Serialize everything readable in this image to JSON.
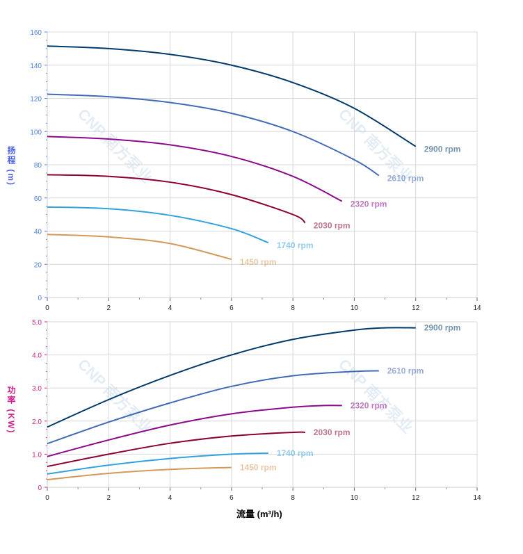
{
  "watermark": "CNP 南方泵业",
  "chart_data": [
    {
      "type": "line",
      "ylabel": "扬程 (m)",
      "xlim": [
        0,
        14
      ],
      "ylim": [
        0,
        160
      ],
      "grid": true,
      "xticks": [
        0,
        2,
        4,
        6,
        8,
        10,
        12,
        14
      ],
      "yticks": [
        0,
        20,
        40,
        60,
        80,
        100,
        120,
        140,
        160
      ],
      "axis_color": "#4a7fe0",
      "series": [
        {
          "name": "2900 rpm",
          "color": "#003a6b",
          "x": [
            0,
            2,
            4,
            6,
            8,
            10,
            12
          ],
          "y": [
            151.5,
            150,
            146.5,
            140,
            129.5,
            114,
            91
          ]
        },
        {
          "name": "2610 rpm",
          "color": "#4169b8",
          "x": [
            0,
            2,
            4,
            6,
            8,
            10,
            10.8
          ],
          "y": [
            122.5,
            121,
            117.5,
            111,
            100,
            83,
            73.5
          ]
        },
        {
          "name": "2320 rpm",
          "color": "#8b0a8b",
          "x": [
            0,
            2,
            4,
            6,
            8,
            9.6
          ],
          "y": [
            97,
            95.5,
            92,
            85,
            73,
            58
          ]
        },
        {
          "name": "2030 rpm",
          "color": "#8b0033",
          "x": [
            0,
            2,
            4,
            6,
            8,
            8.4
          ],
          "y": [
            74,
            73,
            69.5,
            62,
            50,
            45
          ]
        },
        {
          "name": "1740 rpm",
          "color": "#33a1de",
          "x": [
            0,
            2,
            4,
            6,
            7.2
          ],
          "y": [
            54.5,
            53.5,
            49.5,
            41.5,
            33
          ]
        },
        {
          "name": "1450 rpm",
          "color": "#d4995a",
          "x": [
            0,
            2,
            4,
            6
          ],
          "y": [
            38,
            36.5,
            32.5,
            23
          ]
        }
      ]
    },
    {
      "type": "line",
      "xlabel": "流量 (m³/h)",
      "ylabel": "功率 (KW)",
      "xlim": [
        0,
        14
      ],
      "ylim": [
        0,
        5
      ],
      "grid": true,
      "xticks": [
        0,
        2,
        4,
        6,
        8,
        10,
        12,
        14
      ],
      "yticks": [
        "0",
        "1.0",
        "2.0",
        "3.0",
        "4.0",
        "5.0"
      ],
      "axis_color": "#d01f8c",
      "series": [
        {
          "name": "2900 rpm",
          "color": "#003a6b",
          "x": [
            0,
            2,
            4,
            6,
            8,
            10,
            11,
            12
          ],
          "y": [
            1.82,
            2.65,
            3.38,
            4.0,
            4.47,
            4.75,
            4.82,
            4.82
          ]
        },
        {
          "name": "2610 rpm",
          "color": "#4169b8",
          "x": [
            0,
            2,
            4,
            6,
            8,
            10,
            10.8
          ],
          "y": [
            1.32,
            1.97,
            2.55,
            3.05,
            3.37,
            3.5,
            3.52
          ]
        },
        {
          "name": "2320 rpm",
          "color": "#8b0a8b",
          "x": [
            0,
            2,
            4,
            6,
            8,
            9,
            9.6
          ],
          "y": [
            0.93,
            1.43,
            1.88,
            2.22,
            2.42,
            2.47,
            2.47
          ]
        },
        {
          "name": "2030 rpm",
          "color": "#8b0033",
          "x": [
            0,
            2,
            4,
            6,
            8,
            8.4
          ],
          "y": [
            0.63,
            1.0,
            1.33,
            1.55,
            1.66,
            1.66
          ]
        },
        {
          "name": "1740 rpm",
          "color": "#33a1de",
          "x": [
            0,
            2,
            4,
            6,
            7.2
          ],
          "y": [
            0.4,
            0.67,
            0.87,
            1.0,
            1.03
          ]
        },
        {
          "name": "1450 rpm",
          "color": "#d4995a",
          "x": [
            0,
            2,
            4,
            6
          ],
          "y": [
            0.23,
            0.42,
            0.54,
            0.6
          ]
        }
      ]
    }
  ]
}
